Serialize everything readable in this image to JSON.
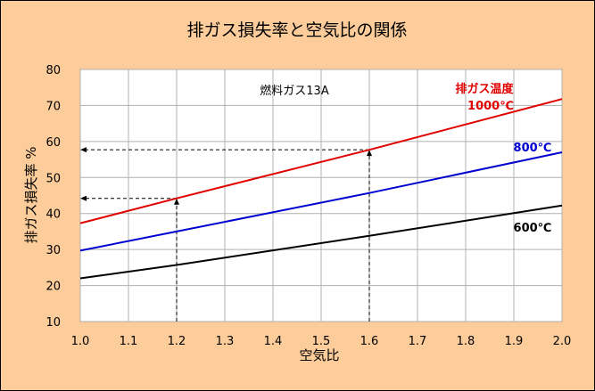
{
  "chart_data": {
    "type": "line",
    "title": "排ガス損失率と空気比の関係",
    "xlabel": "空気比",
    "ylabel": "排ガス損失率 %",
    "xlim": [
      1.0,
      2.0
    ],
    "ylim": [
      10,
      80
    ],
    "x_ticks": [
      "1.0",
      "1.1",
      "1.2",
      "1.3",
      "1.4",
      "1.5",
      "1.6",
      "1.7",
      "1.8",
      "1.9",
      "2.0"
    ],
    "y_ticks": [
      "10",
      "20",
      "30",
      "40",
      "50",
      "60",
      "70",
      "80"
    ],
    "grid": true,
    "annotation": "燃料ガス13A",
    "series_heading": "排ガス温度",
    "series": [
      {
        "name": "1000℃",
        "color": "#E00000",
        "x": [
          1.0,
          1.2,
          1.6,
          2.0
        ],
        "y": [
          37.3,
          44.2,
          57.7,
          71.8
        ]
      },
      {
        "name": "800℃",
        "color": "#0000D0",
        "x": [
          1.0,
          1.2,
          1.6,
          2.0
        ],
        "y": [
          29.7,
          35.0,
          45.7,
          57.0
        ]
      },
      {
        "name": "600℃",
        "color": "#000000",
        "x": [
          1.0,
          1.2,
          1.6,
          2.0
        ],
        "y": [
          22.0,
          25.7,
          33.8,
          42.2
        ]
      }
    ],
    "reference_lines": [
      {
        "x": 1.2,
        "y": 44.2
      },
      {
        "x": 1.6,
        "y": 57.7
      }
    ]
  }
}
